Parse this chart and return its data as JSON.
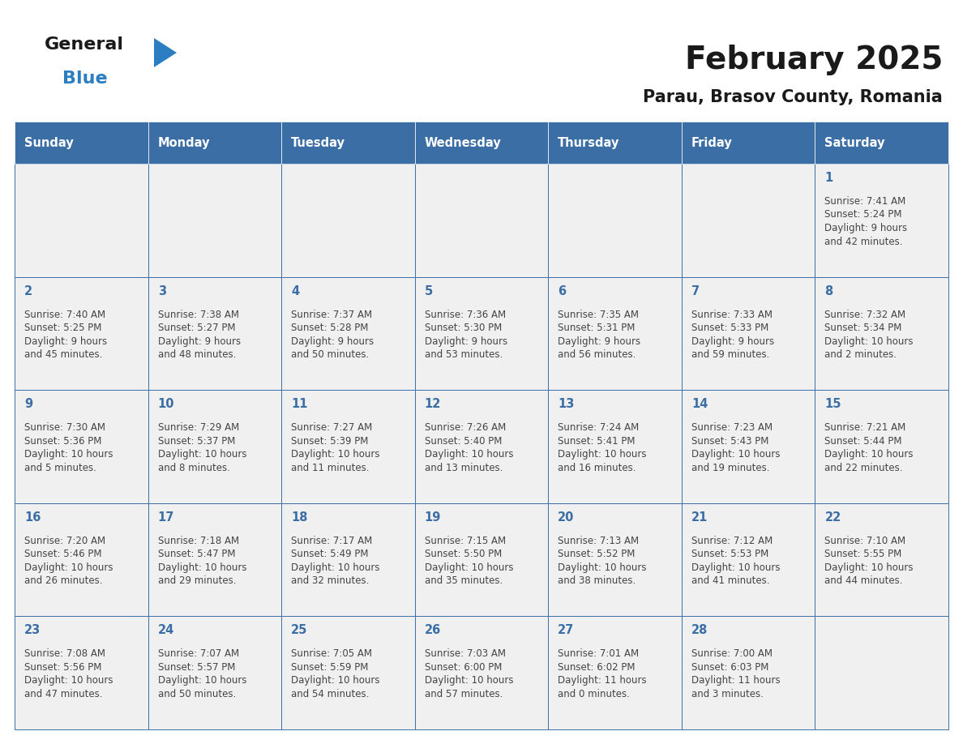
{
  "title": "February 2025",
  "subtitle": "Parau, Brasov County, Romania",
  "days_of_week": [
    "Sunday",
    "Monday",
    "Tuesday",
    "Wednesday",
    "Thursday",
    "Friday",
    "Saturday"
  ],
  "header_bg": "#3a6ea5",
  "header_text": "#ffffff",
  "cell_bg": "#f0f0f0",
  "border_color": "#3a6ea5",
  "text_color": "#444444",
  "day_num_color": "#3a6ea5",
  "title_color": "#1a1a1a",
  "logo_general_color": "#1a1a1a",
  "logo_blue_color": "#2b7ec1",
  "calendar_data": [
    {
      "day": 1,
      "col": 6,
      "row": 0,
      "sunrise": "7:41 AM",
      "sunset": "5:24 PM",
      "daylight_h": "9 hours",
      "daylight_m": "and 42 minutes."
    },
    {
      "day": 2,
      "col": 0,
      "row": 1,
      "sunrise": "7:40 AM",
      "sunset": "5:25 PM",
      "daylight_h": "9 hours",
      "daylight_m": "and 45 minutes."
    },
    {
      "day": 3,
      "col": 1,
      "row": 1,
      "sunrise": "7:38 AM",
      "sunset": "5:27 PM",
      "daylight_h": "9 hours",
      "daylight_m": "and 48 minutes."
    },
    {
      "day": 4,
      "col": 2,
      "row": 1,
      "sunrise": "7:37 AM",
      "sunset": "5:28 PM",
      "daylight_h": "9 hours",
      "daylight_m": "and 50 minutes."
    },
    {
      "day": 5,
      "col": 3,
      "row": 1,
      "sunrise": "7:36 AM",
      "sunset": "5:30 PM",
      "daylight_h": "9 hours",
      "daylight_m": "and 53 minutes."
    },
    {
      "day": 6,
      "col": 4,
      "row": 1,
      "sunrise": "7:35 AM",
      "sunset": "5:31 PM",
      "daylight_h": "9 hours",
      "daylight_m": "and 56 minutes."
    },
    {
      "day": 7,
      "col": 5,
      "row": 1,
      "sunrise": "7:33 AM",
      "sunset": "5:33 PM",
      "daylight_h": "9 hours",
      "daylight_m": "and 59 minutes."
    },
    {
      "day": 8,
      "col": 6,
      "row": 1,
      "sunrise": "7:32 AM",
      "sunset": "5:34 PM",
      "daylight_h": "10 hours",
      "daylight_m": "and 2 minutes."
    },
    {
      "day": 9,
      "col": 0,
      "row": 2,
      "sunrise": "7:30 AM",
      "sunset": "5:36 PM",
      "daylight_h": "10 hours",
      "daylight_m": "and 5 minutes."
    },
    {
      "day": 10,
      "col": 1,
      "row": 2,
      "sunrise": "7:29 AM",
      "sunset": "5:37 PM",
      "daylight_h": "10 hours",
      "daylight_m": "and 8 minutes."
    },
    {
      "day": 11,
      "col": 2,
      "row": 2,
      "sunrise": "7:27 AM",
      "sunset": "5:39 PM",
      "daylight_h": "10 hours",
      "daylight_m": "and 11 minutes."
    },
    {
      "day": 12,
      "col": 3,
      "row": 2,
      "sunrise": "7:26 AM",
      "sunset": "5:40 PM",
      "daylight_h": "10 hours",
      "daylight_m": "and 13 minutes."
    },
    {
      "day": 13,
      "col": 4,
      "row": 2,
      "sunrise": "7:24 AM",
      "sunset": "5:41 PM",
      "daylight_h": "10 hours",
      "daylight_m": "and 16 minutes."
    },
    {
      "day": 14,
      "col": 5,
      "row": 2,
      "sunrise": "7:23 AM",
      "sunset": "5:43 PM",
      "daylight_h": "10 hours",
      "daylight_m": "and 19 minutes."
    },
    {
      "day": 15,
      "col": 6,
      "row": 2,
      "sunrise": "7:21 AM",
      "sunset": "5:44 PM",
      "daylight_h": "10 hours",
      "daylight_m": "and 22 minutes."
    },
    {
      "day": 16,
      "col": 0,
      "row": 3,
      "sunrise": "7:20 AM",
      "sunset": "5:46 PM",
      "daylight_h": "10 hours",
      "daylight_m": "and 26 minutes."
    },
    {
      "day": 17,
      "col": 1,
      "row": 3,
      "sunrise": "7:18 AM",
      "sunset": "5:47 PM",
      "daylight_h": "10 hours",
      "daylight_m": "and 29 minutes."
    },
    {
      "day": 18,
      "col": 2,
      "row": 3,
      "sunrise": "7:17 AM",
      "sunset": "5:49 PM",
      "daylight_h": "10 hours",
      "daylight_m": "and 32 minutes."
    },
    {
      "day": 19,
      "col": 3,
      "row": 3,
      "sunrise": "7:15 AM",
      "sunset": "5:50 PM",
      "daylight_h": "10 hours",
      "daylight_m": "and 35 minutes."
    },
    {
      "day": 20,
      "col": 4,
      "row": 3,
      "sunrise": "7:13 AM",
      "sunset": "5:52 PM",
      "daylight_h": "10 hours",
      "daylight_m": "and 38 minutes."
    },
    {
      "day": 21,
      "col": 5,
      "row": 3,
      "sunrise": "7:12 AM",
      "sunset": "5:53 PM",
      "daylight_h": "10 hours",
      "daylight_m": "and 41 minutes."
    },
    {
      "day": 22,
      "col": 6,
      "row": 3,
      "sunrise": "7:10 AM",
      "sunset": "5:55 PM",
      "daylight_h": "10 hours",
      "daylight_m": "and 44 minutes."
    },
    {
      "day": 23,
      "col": 0,
      "row": 4,
      "sunrise": "7:08 AM",
      "sunset": "5:56 PM",
      "daylight_h": "10 hours",
      "daylight_m": "and 47 minutes."
    },
    {
      "day": 24,
      "col": 1,
      "row": 4,
      "sunrise": "7:07 AM",
      "sunset": "5:57 PM",
      "daylight_h": "10 hours",
      "daylight_m": "and 50 minutes."
    },
    {
      "day": 25,
      "col": 2,
      "row": 4,
      "sunrise": "7:05 AM",
      "sunset": "5:59 PM",
      "daylight_h": "10 hours",
      "daylight_m": "and 54 minutes."
    },
    {
      "day": 26,
      "col": 3,
      "row": 4,
      "sunrise": "7:03 AM",
      "sunset": "6:00 PM",
      "daylight_h": "10 hours",
      "daylight_m": "and 57 minutes."
    },
    {
      "day": 27,
      "col": 4,
      "row": 4,
      "sunrise": "7:01 AM",
      "sunset": "6:02 PM",
      "daylight_h": "11 hours",
      "daylight_m": "and 0 minutes."
    },
    {
      "day": 28,
      "col": 5,
      "row": 4,
      "sunrise": "7:00 AM",
      "sunset": "6:03 PM",
      "daylight_h": "11 hours",
      "daylight_m": "and 3 minutes."
    }
  ],
  "num_rows": 5
}
